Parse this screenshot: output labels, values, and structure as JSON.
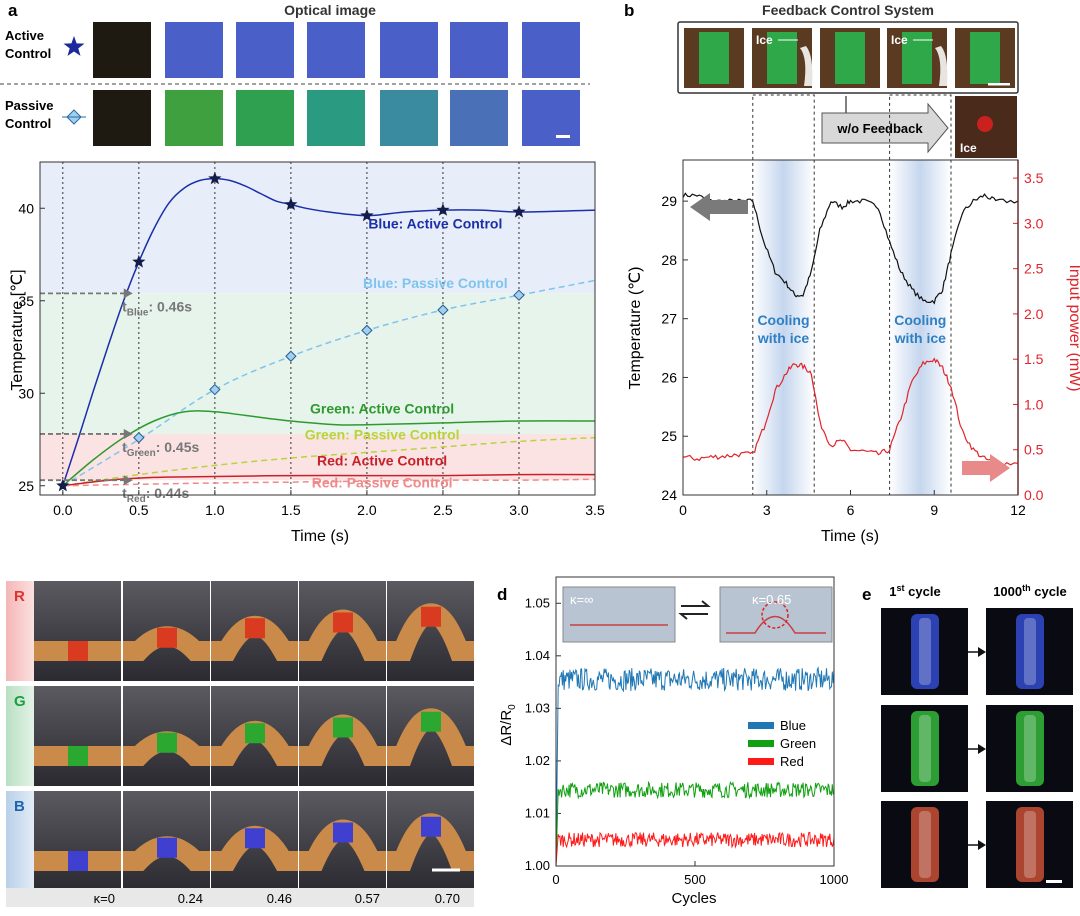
{
  "panel_labels": {
    "a": "a",
    "b": "b",
    "c": "c",
    "d": "d",
    "e": "e"
  },
  "colors": {
    "blue": "#1a2fa8",
    "lightblue": "#7fc4ee",
    "green": "#2e9a2e",
    "lightgreen": "#b9d43a",
    "red": "#c8202a",
    "pink": "#ef8a8a",
    "gray": "#777777",
    "blueband": "#e8eef9",
    "greenband": "#e6f4ec",
    "redband": "#fbe3e3"
  },
  "chart_data": [
    {
      "id": "a",
      "type": "line",
      "title": "Optical image",
      "row_labels": [
        {
          "line1": "Active",
          "line2": "Control",
          "icon": "star-icon"
        },
        {
          "line1": "Passive",
          "line2": "Control",
          "icon": "diamond-icon"
        }
      ],
      "xlabel": "Time (s)",
      "ylabel": "Temperature [℃]",
      "xlim": [
        -0.15,
        3.5
      ],
      "ylim": [
        24.5,
        42.5
      ],
      "xticks": [
        "0.0",
        "0.5",
        "1.0",
        "1.5",
        "2.0",
        "2.5",
        "3.0",
        "3.5"
      ],
      "yticks": [
        "25",
        "30",
        "35",
        "40"
      ],
      "bands": [
        {
          "from": 35.4,
          "to": 42.5,
          "color": "blueband"
        },
        {
          "from": 27.8,
          "to": 35.4,
          "color": "greenband"
        },
        {
          "from": 25.3,
          "to": 27.8,
          "color": "redband"
        }
      ],
      "series": [
        {
          "name": "Blue: Active Control",
          "style": "solid",
          "color": "blue",
          "x": [
            0,
            0.1,
            0.2,
            0.3,
            0.4,
            0.5,
            0.6,
            0.7,
            0.8,
            0.9,
            1.0,
            1.1,
            1.2,
            1.3,
            1.4,
            1.5,
            1.6,
            1.75,
            2.0,
            2.25,
            2.5,
            2.75,
            3.0,
            3.5
          ],
          "y": [
            25,
            27.5,
            30.1,
            32.6,
            35.0,
            37.1,
            38.9,
            40.3,
            41.1,
            41.5,
            41.6,
            41.5,
            41.2,
            40.8,
            40.4,
            40.2,
            40.0,
            39.8,
            39.6,
            39.8,
            39.9,
            39.9,
            39.8,
            39.9
          ]
        },
        {
          "name": "Blue: Passive Control",
          "style": "dashed",
          "color": "lightblue",
          "x": [
            0,
            0.5,
            1.0,
            1.5,
            2.0,
            2.5,
            3.0,
            3.5
          ],
          "y": [
            25,
            27.5,
            30.2,
            32.0,
            33.4,
            34.5,
            35.3,
            36.1
          ]
        },
        {
          "name": "Green: Active Control",
          "style": "solid",
          "color": "green",
          "x": [
            0,
            0.2,
            0.4,
            0.6,
            0.8,
            1.0,
            1.2,
            1.5,
            1.8,
            2.0,
            2.5,
            3.0,
            3.5
          ],
          "y": [
            25,
            26.4,
            27.6,
            28.5,
            29.0,
            29.0,
            28.8,
            28.5,
            28.3,
            28.3,
            28.4,
            28.5,
            28.5
          ]
        },
        {
          "name": "Green: Passive Control",
          "style": "dashed",
          "color": "lightgreen",
          "x": [
            0,
            0.5,
            1.0,
            1.5,
            2.0,
            2.5,
            3.0,
            3.5
          ],
          "y": [
            25,
            25.6,
            26.1,
            26.5,
            26.8,
            27.1,
            27.4,
            27.6
          ]
        },
        {
          "name": "Red: Active Control",
          "style": "solid",
          "color": "red",
          "x": [
            0,
            0.3,
            0.6,
            1.0,
            1.5,
            2.0,
            2.5,
            3.0,
            3.5
          ],
          "y": [
            25,
            25.3,
            25.45,
            25.5,
            25.55,
            25.55,
            25.55,
            25.6,
            25.6
          ]
        },
        {
          "name": "Red: Passive Control",
          "style": "dashed",
          "color": "pink",
          "x": [
            0,
            0.5,
            1.0,
            1.5,
            2.0,
            2.5,
            3.0,
            3.5
          ],
          "y": [
            25,
            25.08,
            25.15,
            25.2,
            25.25,
            25.3,
            25.3,
            25.35
          ]
        }
      ],
      "star_markers": {
        "x": [
          0.5,
          1.0,
          1.5,
          2.0,
          2.5,
          3.0
        ],
        "y": [
          37.1,
          41.6,
          40.2,
          39.6,
          39.9,
          39.8
        ]
      },
      "diamond_markers": {
        "x": [
          0.5,
          1.0,
          1.5,
          2.0,
          2.5,
          3.0
        ],
        "y": [
          27.6,
          30.2,
          32.0,
          33.4,
          34.5,
          35.3
        ]
      },
      "start_marker": {
        "x": 0,
        "y": 25
      },
      "vlines": [
        0,
        0.5,
        1.0,
        1.5,
        2.0,
        2.5,
        3.0
      ],
      "annotations": [
        {
          "pre": "t",
          "sub": "Blue",
          "post": ": 0.46s",
          "y": 35.4,
          "color": "gray"
        },
        {
          "pre": "t",
          "sub": "Green",
          "post": ": 0.45s",
          "y": 27.8,
          "color": "gray"
        },
        {
          "pre": "t",
          "sub": "Red",
          "post": ": 0.44s",
          "y": 25.3,
          "color": "gray"
        }
      ],
      "series_labels": [
        {
          "text": "Blue: Active Control",
          "color": "blue",
          "x": 2.45,
          "y": 38.9
        },
        {
          "text": "Blue: Passive Control",
          "color": "lightblue",
          "x": 2.45,
          "y": 35.7
        },
        {
          "text": "Green: Active Control",
          "color": "green",
          "x": 2.1,
          "y": 28.9
        },
        {
          "text": "Green: Passive Control",
          "color": "lightgreen",
          "x": 2.1,
          "y": 27.5
        },
        {
          "text": "Red: Active Control",
          "color": "red",
          "x": 2.1,
          "y": 26.1
        },
        {
          "text": "Red: Passive Control",
          "color": "pink",
          "x": 2.1,
          "y": 24.9
        }
      ],
      "swatches_active": [
        "#1e1a12",
        "#4a5fc8",
        "#4a5fc8",
        "#4a5fc8",
        "#4a5fc8",
        "#4a5fc8",
        "#4a5fc8"
      ],
      "swatches_passive": [
        "#1e1a12",
        "#3fa040",
        "#2fa050",
        "#2a9a80",
        "#3a8aa0",
        "#4a70b8",
        "#4a5fc8"
      ]
    },
    {
      "id": "b",
      "type": "line",
      "title": "Feedback Control System",
      "feedback_label": "w/o Feedback",
      "ice_label": "Ice",
      "xlabel": "Time (s)",
      "ylabel": "Temperature (℃)",
      "y2label": "Input power (mW)",
      "xlim": [
        0,
        12
      ],
      "ylim": [
        24,
        29.7
      ],
      "y2lim": [
        0,
        3.7
      ],
      "xticks": [
        "0",
        "3",
        "6",
        "9",
        "12"
      ],
      "yticks": [
        "24",
        "25",
        "26",
        "27",
        "28",
        "29"
      ],
      "y2ticks": [
        "0.0",
        "0.5",
        "1.0",
        "1.5",
        "2.0",
        "2.5",
        "3.0",
        "3.5"
      ],
      "cooling_regions": [
        [
          2.5,
          4.7
        ],
        [
          7.4,
          9.6
        ]
      ],
      "cooling_text": {
        "line1": "Cooling",
        "line2": "with ice"
      },
      "series": [
        {
          "name": "Temperature",
          "axis": "left",
          "color": "#111111",
          "x": [
            0,
            0.5,
            1.0,
            1.5,
            2.0,
            2.5,
            2.9,
            3.3,
            3.7,
            4.0,
            4.3,
            4.6,
            4.9,
            5.3,
            5.7,
            6.0,
            6.5,
            7.0,
            7.4,
            7.8,
            8.2,
            8.6,
            9.0,
            9.3,
            9.6,
            10.0,
            10.4,
            10.8,
            11.2,
            12.0
          ],
          "y": [
            29.1,
            29.1,
            29.0,
            29.0,
            29.0,
            29.0,
            28.3,
            27.8,
            27.6,
            27.4,
            27.4,
            27.8,
            28.5,
            29.0,
            28.9,
            29.0,
            29.0,
            28.9,
            28.3,
            27.8,
            27.5,
            27.3,
            27.3,
            27.5,
            28.1,
            28.8,
            29.0,
            29.1,
            29.0,
            29.0
          ]
        },
        {
          "name": "Input power",
          "axis": "right",
          "color": "#e0242a",
          "x": [
            0,
            0.5,
            1.0,
            1.5,
            2.0,
            2.5,
            2.9,
            3.3,
            3.7,
            4.0,
            4.3,
            4.6,
            4.9,
            5.3,
            5.7,
            6.0,
            6.5,
            7.0,
            7.4,
            7.8,
            8.2,
            8.6,
            9.0,
            9.3,
            9.6,
            10.0,
            10.4,
            10.8,
            11.2,
            12.0
          ],
          "y": [
            0.42,
            0.4,
            0.42,
            0.43,
            0.45,
            0.45,
            0.75,
            1.15,
            1.35,
            1.45,
            1.42,
            1.35,
            0.8,
            0.55,
            0.6,
            0.5,
            0.48,
            0.45,
            0.5,
            0.85,
            1.25,
            1.45,
            1.5,
            1.4,
            1.2,
            0.7,
            0.5,
            0.4,
            0.35,
            0.35
          ]
        }
      ]
    },
    {
      "id": "c",
      "type": "table",
      "rows": [
        "R",
        "G",
        "B"
      ],
      "row_colors": [
        "#f4b6b6",
        "#b9e0c2",
        "#b9cfe8"
      ],
      "row_text_colors": [
        "#e03030",
        "#1aa040",
        "#1f63b3"
      ],
      "stripe_colors": [
        "#d93a20",
        "#2aa830",
        "#4040d0"
      ],
      "kappa_labels": [
        "κ=0",
        "0.24",
        "0.46",
        "0.57",
        "0.70"
      ]
    },
    {
      "id": "d",
      "type": "line",
      "xlabel": "Cycles",
      "ylabel_main": "ΔR/R",
      "ylabel_sub": "0",
      "xlim": [
        0,
        1000
      ],
      "ylim": [
        1.0,
        1.055
      ],
      "xticks": [
        "0",
        "500",
        "1000"
      ],
      "yticks": [
        "1.00",
        "1.01",
        "1.02",
        "1.03",
        "1.04",
        "1.05"
      ],
      "inset_labels": [
        "κ=∞",
        "κ=0.65"
      ],
      "series": [
        {
          "name": "Blue",
          "color": "#1f77b4",
          "center": 1.0355,
          "noise": 0.0022
        },
        {
          "name": "Green",
          "color": "#11a011",
          "center": 1.0145,
          "noise": 0.0015
        },
        {
          "name": "Red",
          "color": "#ff1a1a",
          "center": 1.005,
          "noise": 0.0014
        }
      ]
    },
    {
      "id": "e",
      "type": "table",
      "headers": [
        {
          "num": "1",
          "sup": "st",
          "rest": " cycle"
        },
        {
          "num": "1000",
          "sup": "th",
          "rest": " cycle"
        }
      ],
      "rows": [
        "blue",
        "green",
        "red"
      ],
      "glow_colors": [
        "#3a55e8",
        "#3ad040",
        "#e25a3a"
      ]
    }
  ]
}
